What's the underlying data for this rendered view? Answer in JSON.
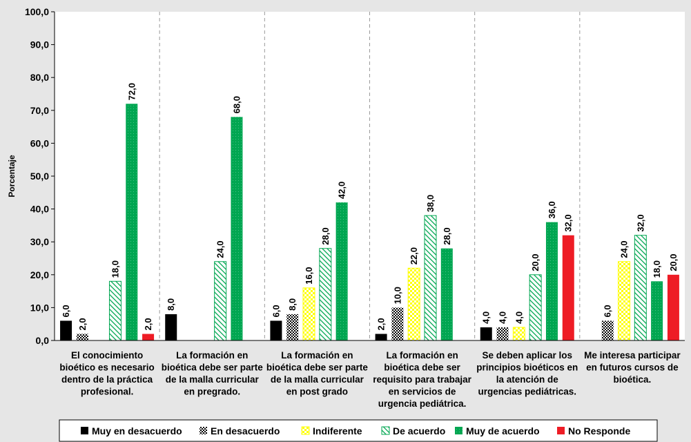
{
  "chart_data": {
    "type": "bar",
    "ylabel": "Porcentaje",
    "ylim": [
      0,
      100
    ],
    "yticks": [
      "0,0",
      "10,0",
      "20,0",
      "30,0",
      "40,0",
      "50,0",
      "60,0",
      "70,0",
      "80,0",
      "90,0",
      "100,0"
    ],
    "categories": [
      [
        "El conocimiento",
        "bioético es necesario",
        "dentro de la práctica",
        "profesional."
      ],
      [
        "La formación en",
        "bioética debe ser parte",
        "de la malla curricular",
        "en pregrado."
      ],
      [
        "La formación en",
        "bioética debe ser parte",
        "de la malla curricular",
        "en post grado"
      ],
      [
        "La formación en",
        "bioética debe ser",
        "requisito para trabajar",
        "en servicios de",
        "urgencia pediátrica."
      ],
      [
        "Se deben aplicar los",
        "principios  bioéticos en",
        "la atención de",
        "urgencias pediátricas."
      ],
      [
        "Me interesa participar",
        "en futuros cursos de",
        "bioética."
      ]
    ],
    "series": [
      {
        "name": "Muy en desacuerdo",
        "color": "#000000",
        "pattern": "solid",
        "values": [
          6,
          8,
          6,
          2,
          4,
          0
        ],
        "labels": [
          "6,0",
          "8,0",
          "6,0",
          "2,0",
          "4,0",
          null
        ]
      },
      {
        "name": "En desacuerdo",
        "color": "#000000",
        "pattern": "checker",
        "values": [
          2,
          0,
          8,
          10,
          4,
          6
        ],
        "labels": [
          "2,0",
          null,
          "8,0",
          "10,0",
          "4,0",
          "6,0"
        ]
      },
      {
        "name": "Indiferente",
        "color": "#ffff00",
        "pattern": "checker",
        "values": [
          0,
          0,
          16,
          22,
          4,
          24
        ],
        "labels": [
          null,
          null,
          "16,0",
          "22,0",
          "4,0",
          "24,0"
        ]
      },
      {
        "name": "De acuerdo",
        "color": "#00a651",
        "pattern": "hatch",
        "values": [
          18,
          24,
          28,
          38,
          20,
          32
        ],
        "labels": [
          "18,0",
          "24,0",
          "28,0",
          "38,0",
          "20,0",
          "32,0"
        ]
      },
      {
        "name": "Muy de acuerdo",
        "color": "#00a651",
        "pattern": "dots",
        "values": [
          72,
          68,
          42,
          28,
          36,
          18
        ],
        "labels": [
          "72,0",
          "68,0",
          "42,0",
          "28,0",
          "36,0",
          "18,0"
        ]
      },
      {
        "name": "No Responde",
        "color": "#ee1c25",
        "pattern": "solid",
        "values": [
          2,
          0,
          0,
          0,
          32,
          20
        ],
        "labels": [
          "2,0",
          null,
          null,
          null,
          "32,0",
          "20,0"
        ]
      }
    ],
    "grid": false,
    "legend": "bottom"
  }
}
